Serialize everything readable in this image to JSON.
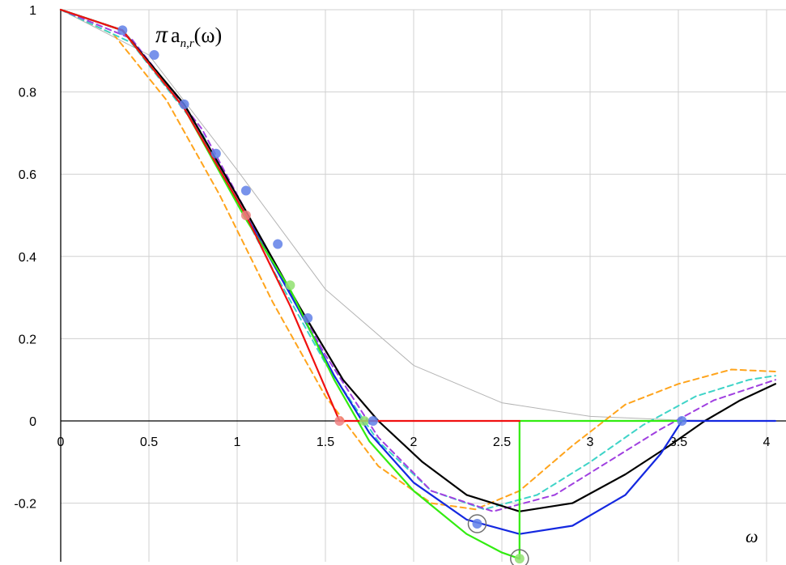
{
  "chart_data": {
    "type": "line",
    "title": "",
    "xlabel": "ω",
    "ylabel_parts": {
      "pi": "π",
      "a": "a",
      "sub": "n,r",
      "arg": "(ω)"
    },
    "xlim": [
      0,
      4.05
    ],
    "ylim": [
      -0.33,
      1
    ],
    "grid": true,
    "x_ticks": [
      {
        "value": 0,
        "label": "0"
      },
      {
        "value": 0.5,
        "label": "0.5"
      },
      {
        "value": 1,
        "label": "1"
      },
      {
        "value": 1.5,
        "label": "1.5"
      },
      {
        "value": 2,
        "label": "2"
      },
      {
        "value": 2.5,
        "label": "2.5"
      },
      {
        "value": 3,
        "label": "3"
      },
      {
        "value": 3.5,
        "label": "3.5"
      },
      {
        "value": 4,
        "label": "4"
      }
    ],
    "y_ticks": [
      {
        "value": 1,
        "label": "1"
      },
      {
        "value": 0.8,
        "label": "0.8"
      },
      {
        "value": 0.6,
        "label": "0.6"
      },
      {
        "value": 0.4,
        "label": "0.4"
      },
      {
        "value": 0.2,
        "label": "0.2"
      },
      {
        "value": 0,
        "label": "0"
      },
      {
        "value": -0.2,
        "label": "-0.2"
      }
    ],
    "series": [
      {
        "color": "#b4b4b4",
        "width": 1,
        "dash": "",
        "points": [
          [
            0,
            1
          ],
          [
            0.5,
            0.89
          ],
          [
            1,
            0.61
          ],
          [
            1.5,
            0.32
          ],
          [
            2,
            0.135
          ],
          [
            2.5,
            0.044
          ],
          [
            3,
            0.011
          ],
          [
            3.5,
            0.002
          ],
          [
            4,
            0
          ]
        ]
      },
      {
        "color": "#ffa41c",
        "width": 2,
        "dash": "7,5",
        "points": [
          [
            0,
            1
          ],
          [
            0.3,
            0.94
          ],
          [
            0.6,
            0.78
          ],
          [
            0.9,
            0.55
          ],
          [
            1.2,
            0.29
          ],
          [
            1.5,
            0.06
          ],
          [
            1.8,
            -0.11
          ],
          [
            2.1,
            -0.2
          ],
          [
            2.35,
            -0.215
          ],
          [
            2.6,
            -0.17
          ],
          [
            2.9,
            -0.06
          ],
          [
            3.2,
            0.04
          ],
          [
            3.5,
            0.09
          ],
          [
            3.8,
            0.125
          ],
          [
            4.05,
            0.12
          ]
        ]
      },
      {
        "color": "#3fd4c8",
        "width": 2,
        "dash": "7,5",
        "points": [
          [
            0,
            1
          ],
          [
            0.4,
            0.92
          ],
          [
            0.8,
            0.7
          ],
          [
            1.2,
            0.37
          ],
          [
            1.5,
            0.14
          ],
          [
            1.8,
            -0.05
          ],
          [
            2.1,
            -0.17
          ],
          [
            2.4,
            -0.215
          ],
          [
            2.7,
            -0.18
          ],
          [
            3,
            -0.1
          ],
          [
            3.3,
            -0.01
          ],
          [
            3.6,
            0.06
          ],
          [
            3.9,
            0.1
          ],
          [
            4.05,
            0.11
          ]
        ]
      },
      {
        "color": "#a040e0",
        "width": 2,
        "dash": "7,5",
        "points": [
          [
            0,
            1
          ],
          [
            0.4,
            0.93
          ],
          [
            0.8,
            0.71
          ],
          [
            1.2,
            0.39
          ],
          [
            1.5,
            0.16
          ],
          [
            1.8,
            -0.04
          ],
          [
            2.1,
            -0.17
          ],
          [
            2.45,
            -0.22
          ],
          [
            2.8,
            -0.18
          ],
          [
            3.1,
            -0.1
          ],
          [
            3.4,
            -0.02
          ],
          [
            3.7,
            0.05
          ],
          [
            4.05,
            0.1
          ]
        ]
      },
      {
        "color": "#000000",
        "width": 2.2,
        "dash": "",
        "points": [
          [
            0,
            1
          ],
          [
            0.35,
            0.95
          ],
          [
            0.7,
            0.77
          ],
          [
            1.05,
            0.51
          ],
          [
            1.35,
            0.28
          ],
          [
            1.6,
            0.1
          ],
          [
            1.8,
            0
          ],
          [
            2.05,
            -0.1
          ],
          [
            2.3,
            -0.18
          ],
          [
            2.6,
            -0.22
          ],
          [
            2.9,
            -0.2
          ],
          [
            3.2,
            -0.13
          ],
          [
            3.45,
            -0.06
          ],
          [
            3.65,
            0
          ],
          [
            3.85,
            0.05
          ],
          [
            4.05,
            0.09
          ]
        ]
      },
      {
        "color": "#1428e0",
        "width": 2.2,
        "dash": "",
        "points": [
          [
            0,
            1
          ],
          [
            0.35,
            0.95
          ],
          [
            0.7,
            0.76
          ],
          [
            1.05,
            0.5
          ],
          [
            1.35,
            0.27
          ],
          [
            1.55,
            0.11
          ],
          [
            1.75,
            -0.03
          ],
          [
            2,
            -0.15
          ],
          [
            2.3,
            -0.24
          ],
          [
            2.6,
            -0.275
          ],
          [
            2.9,
            -0.255
          ],
          [
            3.2,
            -0.18
          ],
          [
            3.4,
            -0.08
          ],
          [
            3.52,
            0
          ]
        ]
      },
      {
        "color": "#1428e0",
        "width": 2.2,
        "dash": "",
        "points": [
          [
            3.52,
            0
          ],
          [
            4.05,
            0
          ]
        ]
      },
      {
        "color": "#32ec10",
        "width": 2.2,
        "dash": "",
        "points": [
          [
            0,
            1
          ],
          [
            0.35,
            0.95
          ],
          [
            0.7,
            0.76
          ],
          [
            1.05,
            0.49
          ],
          [
            1.3,
            0.32
          ],
          [
            1.55,
            0.1
          ],
          [
            1.75,
            -0.05
          ],
          [
            2,
            -0.17
          ],
          [
            2.3,
            -0.275
          ],
          [
            2.5,
            -0.32
          ],
          [
            2.6,
            -0.335
          ]
        ]
      },
      {
        "color": "#32ec10",
        "width": 2.2,
        "dash": "",
        "points": [
          [
            2.6,
            -0.335
          ],
          [
            2.6,
            0
          ],
          [
            3.52,
            0
          ]
        ]
      },
      {
        "color": "#f01010",
        "width": 2.2,
        "dash": "",
        "points": [
          [
            0,
            1
          ],
          [
            0.35,
            0.95
          ],
          [
            0.7,
            0.76
          ],
          [
            1.05,
            0.5
          ],
          [
            1.3,
            0.28
          ],
          [
            1.58,
            0
          ],
          [
            2.6,
            0
          ]
        ]
      }
    ],
    "markers": [
      {
        "color": "#f08080",
        "points": [
          [
            1.05,
            0.5
          ],
          [
            1.58,
            0
          ]
        ]
      },
      {
        "color": "#90e070",
        "points": [
          [
            1.3,
            0.33
          ],
          [
            1.72,
            0
          ],
          [
            2.6,
            -0.335
          ]
        ]
      },
      {
        "color": "#6080e8",
        "points": [
          [
            0.35,
            0.95
          ],
          [
            0.53,
            0.89
          ],
          [
            0.7,
            0.77
          ],
          [
            0.88,
            0.65
          ],
          [
            1.05,
            0.56
          ],
          [
            1.23,
            0.43
          ],
          [
            1.4,
            0.25
          ],
          [
            1.77,
            0
          ],
          [
            2.36,
            -0.25
          ],
          [
            3.52,
            0
          ]
        ]
      }
    ],
    "circled_points": [
      [
        2.36,
        -0.25
      ],
      [
        2.6,
        -0.335
      ]
    ]
  }
}
